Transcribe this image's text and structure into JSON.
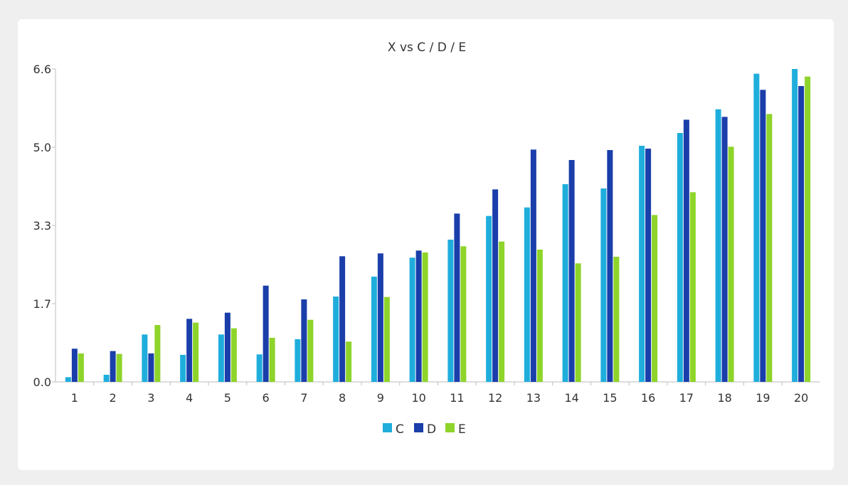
{
  "chart_data": {
    "type": "bar",
    "title": "X vs C / D / E",
    "xlabel": "",
    "ylabel": "",
    "ylim": [
      0,
      6.6
    ],
    "yticks": [
      "0.0",
      "1.7",
      "3.3",
      "5.0",
      "6.6"
    ],
    "ytick_values": [
      0,
      1.65,
      3.3,
      4.95,
      6.6
    ],
    "categories": [
      "1",
      "2",
      "3",
      "4",
      "5",
      "6",
      "7",
      "8",
      "9",
      "10",
      "11",
      "12",
      "13",
      "14",
      "15",
      "16",
      "17",
      "18",
      "19",
      "20"
    ],
    "series": [
      {
        "name": "C",
        "color": "#1FAEDC",
        "values": [
          0.1,
          0.15,
          1.0,
          0.57,
          1.0,
          0.58,
          0.9,
          1.8,
          2.22,
          2.62,
          3.0,
          3.5,
          3.68,
          4.17,
          4.08,
          4.98,
          5.25,
          5.75,
          6.5,
          6.6
        ]
      },
      {
        "name": "D",
        "color": "#1A3EAA",
        "values": [
          0.7,
          0.65,
          0.6,
          1.33,
          1.46,
          2.03,
          1.74,
          2.65,
          2.71,
          2.77,
          3.55,
          4.06,
          4.9,
          4.68,
          4.89,
          4.92,
          5.53,
          5.59,
          6.16,
          6.24
        ]
      },
      {
        "name": "E",
        "color": "#8ED42A",
        "values": [
          0.6,
          0.59,
          1.2,
          1.25,
          1.13,
          0.93,
          1.31,
          0.85,
          1.79,
          2.73,
          2.86,
          2.96,
          2.79,
          2.5,
          2.64,
          3.52,
          4.0,
          4.96,
          5.65,
          6.44
        ]
      }
    ],
    "grid": false,
    "legend_position": "bottom-center"
  }
}
